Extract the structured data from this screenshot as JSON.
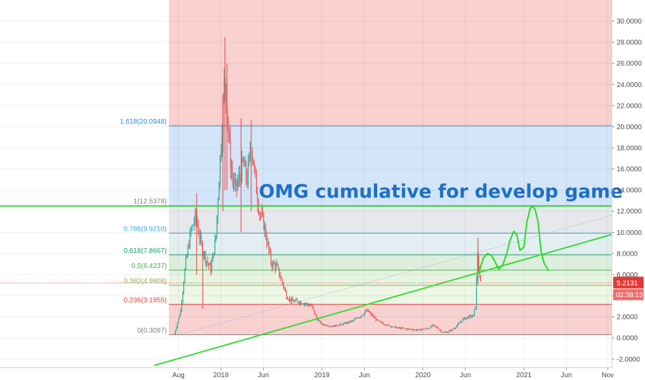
{
  "chart_data": {
    "type": "candlestick",
    "title": "OMG cumulative for develop game",
    "y_axis": {
      "min": -2.8,
      "max": 32,
      "ticks": [
        30,
        28,
        26,
        24,
        22,
        20,
        18,
        16,
        14,
        12,
        10,
        8,
        6,
        4,
        2,
        0,
        -2
      ],
      "tick_labels": [
        "30.0000",
        "28.0000",
        "26.0000",
        "24.0000",
        "22.0000",
        "20.0000",
        "18.0000",
        "16.0000",
        "14.0000",
        "12.0000",
        "10.0000",
        "8.0000",
        "6.0000",
        "4.0000",
        "2.0000",
        "0.0000",
        "-2.0000"
      ]
    },
    "x_axis": {
      "min": 2017.485,
      "max": 2021.87,
      "ticks": [
        {
          "x": 2017.58,
          "label": "Aug"
        },
        {
          "x": 2018.0,
          "label": "2018"
        },
        {
          "x": 2018.42,
          "label": "Jun"
        },
        {
          "x": 2019.0,
          "label": "2019"
        },
        {
          "x": 2019.42,
          "label": "Jun"
        },
        {
          "x": 2020.0,
          "label": "2020"
        },
        {
          "x": 2020.42,
          "label": "Jun"
        },
        {
          "x": 2021.0,
          "label": "2021"
        },
        {
          "x": 2021.42,
          "label": "Jun"
        },
        {
          "x": 2021.83,
          "label": "Nov"
        }
      ]
    },
    "fib_levels": [
      {
        "ratio": "1.618",
        "value": 20.0948,
        "label": "1.618(20.0948)",
        "color": "#2e8de0",
        "zone": "#d3e5f8"
      },
      {
        "ratio": "1",
        "value": 12.5378,
        "label": "1(12.5378)",
        "color": "#808080",
        "zone": "#e6e8ec"
      },
      {
        "ratio": "0.786",
        "value": 9.921,
        "label": "0.786(9.9210)",
        "color": "#39a8d8",
        "zone": "#e3eef2"
      },
      {
        "ratio": "0.618",
        "value": 7.8667,
        "label": "0.618(7.8667)",
        "color": "#1aa06a",
        "zone": "#deeede"
      },
      {
        "ratio": "0.5",
        "value": 6.4237,
        "label": "0.5(6.4237)",
        "color": "#4caf50",
        "zone": "#e6f4e2"
      },
      {
        "ratio": "0.382",
        "value": 4.9808,
        "label": "0.382(4.9808)",
        "color": "#8cae4a",
        "zone": "#eef6e6"
      },
      {
        "ratio": "0.236",
        "value": 3.1955,
        "label": "0.236(3.1955)",
        "color": "#e0413a",
        "zone": "#f9d1d1"
      },
      {
        "ratio": "0",
        "value": 0.3097,
        "label": "0(0.3097)",
        "color": "#808080",
        "zone": "#f9d1d1"
      }
    ],
    "fib_x_start": 2017.485,
    "top_zone_color": "#f9d1d1",
    "price": 5.2131,
    "price_label": "5.2131",
    "countdown": "02:38:13",
    "horizontal_line": {
      "value": 12.5,
      "color": "#33dd33"
    },
    "trendline": {
      "points": [
        [
          2017.34,
          -2.6
        ],
        [
          2021.87,
          9.8
        ]
      ],
      "color": "#33dd33"
    },
    "dotted_line": {
      "points": [
        [
          2017.58,
          0.3
        ],
        [
          2021.87,
          11.6
        ]
      ],
      "color": "#9aa0aa"
    },
    "projection_path": [
      [
        2020.56,
        6.4
      ],
      [
        2020.6,
        7.6
      ],
      [
        2020.64,
        8.0
      ],
      [
        2020.68,
        7.8
      ],
      [
        2020.72,
        7.1
      ],
      [
        2020.75,
        6.5
      ],
      [
        2020.79,
        6.9
      ],
      [
        2020.83,
        8.0
      ],
      [
        2020.86,
        9.2
      ],
      [
        2020.9,
        10.1
      ],
      [
        2020.93,
        9.8
      ],
      [
        2020.96,
        8.3
      ],
      [
        2021.0,
        8.6
      ],
      [
        2021.03,
        11.0
      ],
      [
        2021.06,
        12.2
      ],
      [
        2021.08,
        12.5
      ],
      [
        2021.11,
        12.2
      ],
      [
        2021.14,
        11.0
      ],
      [
        2021.17,
        8.2
      ],
      [
        2021.2,
        7.1
      ],
      [
        2021.24,
        6.4
      ]
    ],
    "projection_color": "#22dd22",
    "price_anchors": [
      [
        2017.54,
        0.4
      ],
      [
        2017.6,
        2.5
      ],
      [
        2017.65,
        7.0
      ],
      [
        2017.7,
        10.0
      ],
      [
        2017.75,
        11.5
      ],
      [
        2017.8,
        9.0
      ],
      [
        2017.85,
        7.5
      ],
      [
        2017.9,
        6.5
      ],
      [
        2017.95,
        9.5
      ],
      [
        2017.98,
        15.0
      ],
      [
        2018.02,
        21.5
      ],
      [
        2018.04,
        25.0
      ],
      [
        2018.07,
        20.0
      ],
      [
        2018.1,
        16.0
      ],
      [
        2018.14,
        14.0
      ],
      [
        2018.18,
        15.0
      ],
      [
        2018.22,
        16.5
      ],
      [
        2018.26,
        15.0
      ],
      [
        2018.3,
        18.5
      ],
      [
        2018.34,
        15.0
      ],
      [
        2018.38,
        12.0
      ],
      [
        2018.42,
        11.0
      ],
      [
        2018.46,
        9.0
      ],
      [
        2018.5,
        7.0
      ],
      [
        2018.55,
        6.8
      ],
      [
        2018.6,
        5.5
      ],
      [
        2018.65,
        4.0
      ],
      [
        2018.7,
        3.5
      ],
      [
        2018.8,
        3.4
      ],
      [
        2018.9,
        3.0
      ],
      [
        2018.95,
        1.8
      ],
      [
        2019.0,
        1.3
      ],
      [
        2019.1,
        1.1
      ],
      [
        2019.2,
        1.3
      ],
      [
        2019.3,
        1.6
      ],
      [
        2019.4,
        2.2
      ],
      [
        2019.45,
        2.6
      ],
      [
        2019.5,
        2.1
      ],
      [
        2019.55,
        1.6
      ],
      [
        2019.65,
        1.2
      ],
      [
        2019.75,
        0.95
      ],
      [
        2019.85,
        0.85
      ],
      [
        2019.95,
        0.75
      ],
      [
        2020.05,
        0.9
      ],
      [
        2020.1,
        1.2
      ],
      [
        2020.15,
        0.9
      ],
      [
        2020.2,
        0.5
      ],
      [
        2020.25,
        0.6
      ],
      [
        2020.3,
        0.85
      ],
      [
        2020.35,
        1.3
      ],
      [
        2020.4,
        1.8
      ],
      [
        2020.45,
        2.0
      ],
      [
        2020.5,
        2.1
      ],
      [
        2020.52,
        3.0
      ],
      [
        2020.535,
        6.5
      ],
      [
        2020.545,
        8.6
      ],
      [
        2020.555,
        5.5
      ],
      [
        2020.575,
        5.2
      ]
    ],
    "spikes": [
      {
        "x": 2017.76,
        "high": 13.7,
        "low": 6.0
      },
      {
        "x": 2017.82,
        "high": 9.0,
        "low": 2.8
      },
      {
        "x": 2018.02,
        "high": 23.0,
        "low": 12.0
      },
      {
        "x": 2018.04,
        "high": 28.5,
        "low": 14.0
      },
      {
        "x": 2018.06,
        "high": 26.0,
        "low": 14.0
      },
      {
        "x": 2018.2,
        "high": 20.8,
        "low": 10.0
      },
      {
        "x": 2018.3,
        "high": 20.6,
        "low": 12.0
      },
      {
        "x": 2020.545,
        "high": 9.5,
        "low": 5.0
      }
    ]
  }
}
